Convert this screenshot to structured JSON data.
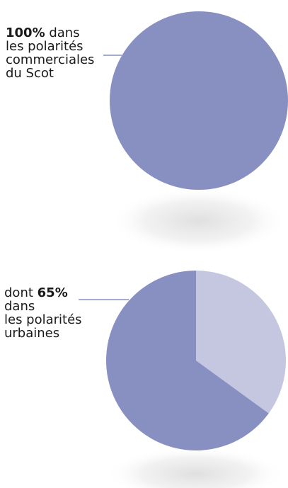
{
  "colors": {
    "primary_slice": "#8890c2",
    "secondary_slice": "#c5c7e1",
    "leader_line": "#6f78b4",
    "text": "#1a1a1a"
  },
  "chart_data": [
    {
      "type": "pie",
      "slices": [
        {
          "value": 100,
          "color": "#8890c2"
        }
      ],
      "annotation": {
        "prefix": "",
        "value": "100%",
        "suffix": " dans",
        "line2": "les polarités",
        "line3": "commerciales",
        "line4": "du Scot"
      }
    },
    {
      "type": "pie",
      "slices": [
        {
          "value": 65,
          "color": "#8890c2"
        },
        {
          "value": 35,
          "color": "#c5c7e1"
        }
      ],
      "annotation": {
        "prefix": "dont ",
        "value": "65%",
        "suffix": "",
        "line2": "dans",
        "line3": "les polarités",
        "line4": "urbaines"
      }
    }
  ]
}
